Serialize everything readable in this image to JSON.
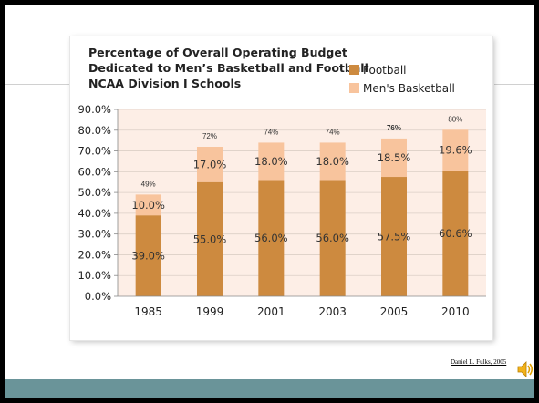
{
  "chart_data": {
    "type": "bar",
    "stacked": true,
    "title_lines": [
      "Percentage of Overall Operating Budget",
      "Dedicated to Men’s Basketball and Football",
      "NCAA Division I Schools"
    ],
    "categories": [
      "1985",
      "1999",
      "2001",
      "2003",
      "2005",
      "2010"
    ],
    "series": [
      {
        "name": "Football",
        "values": [
          39.0,
          55.0,
          56.0,
          56.0,
          57.5,
          60.6
        ],
        "labels": [
          "39.0%",
          "55.0%",
          "56.0%",
          "56.0%",
          "57.5%",
          "60.6%"
        ],
        "color": "#cd8a3f"
      },
      {
        "name": "Men's Basketball",
        "values": [
          10.0,
          17.0,
          18.0,
          18.0,
          18.5,
          19.6
        ],
        "labels": [
          "10.0%",
          "17.0%",
          "18.0%",
          "18.0%",
          "18.5%",
          "19.6%"
        ],
        "color": "#f8c49d"
      }
    ],
    "totals": [
      "49%",
      "72%",
      "74%",
      "74%",
      "76%",
      "80%"
    ],
    "y_ticks": [
      "0.0%",
      "10.0%",
      "20.0%",
      "30.0%",
      "40.0%",
      "50.0%",
      "60.0%",
      "70.0%",
      "80.0%",
      "90.0%"
    ],
    "ylim": [
      0,
      90
    ],
    "xlabel": "",
    "ylabel": "",
    "legend_position": "top-right",
    "plot_background": "#fdeee6",
    "grid": true
  },
  "footer": {
    "author": "Daniel L. Fulks, 2005"
  },
  "icons": {
    "audio": "speaker-icon"
  }
}
